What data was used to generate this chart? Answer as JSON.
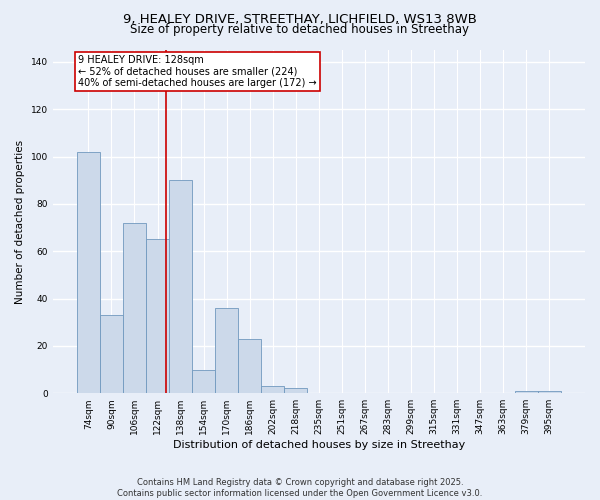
{
  "title_line1": "9, HEALEY DRIVE, STREETHAY, LICHFIELD, WS13 8WB",
  "title_line2": "Size of property relative to detached houses in Streethay",
  "xlabel": "Distribution of detached houses by size in Streethay",
  "ylabel": "Number of detached properties",
  "categories": [
    "74sqm",
    "90sqm",
    "106sqm",
    "122sqm",
    "138sqm",
    "154sqm",
    "170sqm",
    "186sqm",
    "202sqm",
    "218sqm",
    "235sqm",
    "251sqm",
    "267sqm",
    "283sqm",
    "299sqm",
    "315sqm",
    "331sqm",
    "347sqm",
    "363sqm",
    "379sqm",
    "395sqm"
  ],
  "values": [
    102,
    33,
    72,
    65,
    90,
    10,
    36,
    23,
    3,
    2,
    0,
    0,
    0,
    0,
    0,
    0,
    0,
    0,
    0,
    1,
    1
  ],
  "bar_color": "#ccd9ea",
  "bar_edge_color": "#7098be",
  "background_color": "#e8eef8",
  "grid_color": "#ffffff",
  "ylim": [
    0,
    145
  ],
  "yticks": [
    0,
    20,
    40,
    60,
    80,
    100,
    120,
    140
  ],
  "annotation_line1": "9 HEALEY DRIVE: 128sqm",
  "annotation_line2": "← 52% of detached houses are smaller (224)",
  "annotation_line3": "40% of semi-detached houses are larger (172) →",
  "vline_color": "#cc0000",
  "footer_line1": "Contains HM Land Registry data © Crown copyright and database right 2025.",
  "footer_line2": "Contains public sector information licensed under the Open Government Licence v3.0.",
  "title_fontsize": 9.5,
  "subtitle_fontsize": 8.5,
  "xlabel_fontsize": 8,
  "ylabel_fontsize": 7.5,
  "tick_fontsize": 6.5,
  "annotation_fontsize": 7,
  "footer_fontsize": 6
}
